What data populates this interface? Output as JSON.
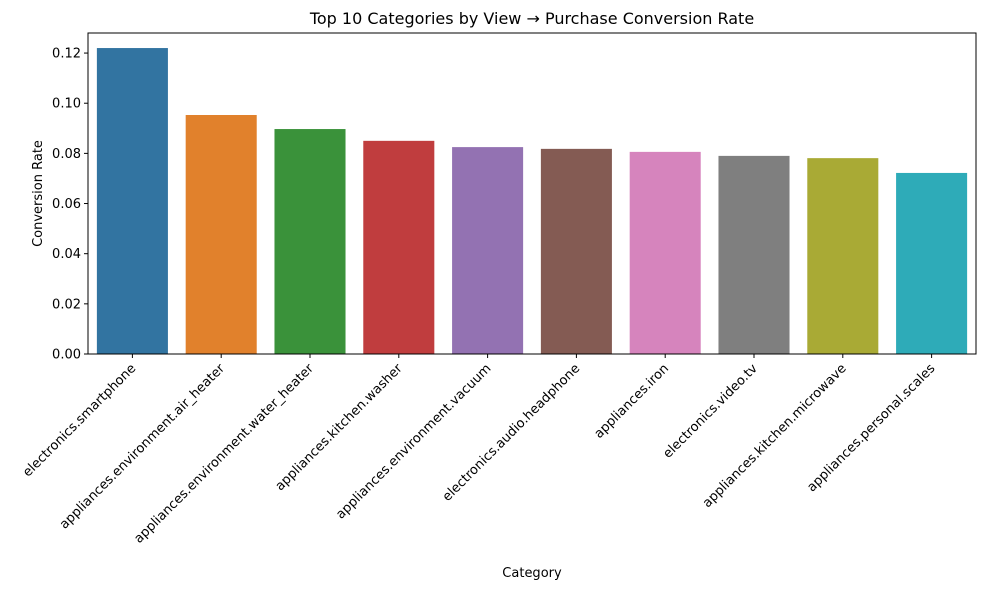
{
  "chart_data": {
    "type": "bar",
    "title": "Top 10 Categories by View → Purchase Conversion Rate",
    "xlabel": "Category",
    "ylabel": "Conversion Rate",
    "ylim": [
      0,
      0.128
    ],
    "yticks": [
      "0.00",
      "0.02",
      "0.04",
      "0.06",
      "0.08",
      "0.10",
      "0.12"
    ],
    "grid": false,
    "categories": [
      "electronics.smartphone",
      "appliances.environment.air_heater",
      "appliances.environment.water_heater",
      "appliances.kitchen.washer",
      "appliances.environment.vacuum",
      "electronics.audio.headphone",
      "appliances.iron",
      "electronics.video.tv",
      "appliances.kitchen.microwave",
      "appliances.personal.scales"
    ],
    "values": [
      0.122,
      0.0953,
      0.0897,
      0.085,
      0.0825,
      0.0818,
      0.0806,
      0.079,
      0.0781,
      0.0722
    ],
    "colors": [
      "#3274a1",
      "#e1812c",
      "#3a923a",
      "#c03d3e",
      "#9372b2",
      "#845b53",
      "#d684bd",
      "#7f7f7f",
      "#a9aa35",
      "#2eabb8"
    ]
  }
}
